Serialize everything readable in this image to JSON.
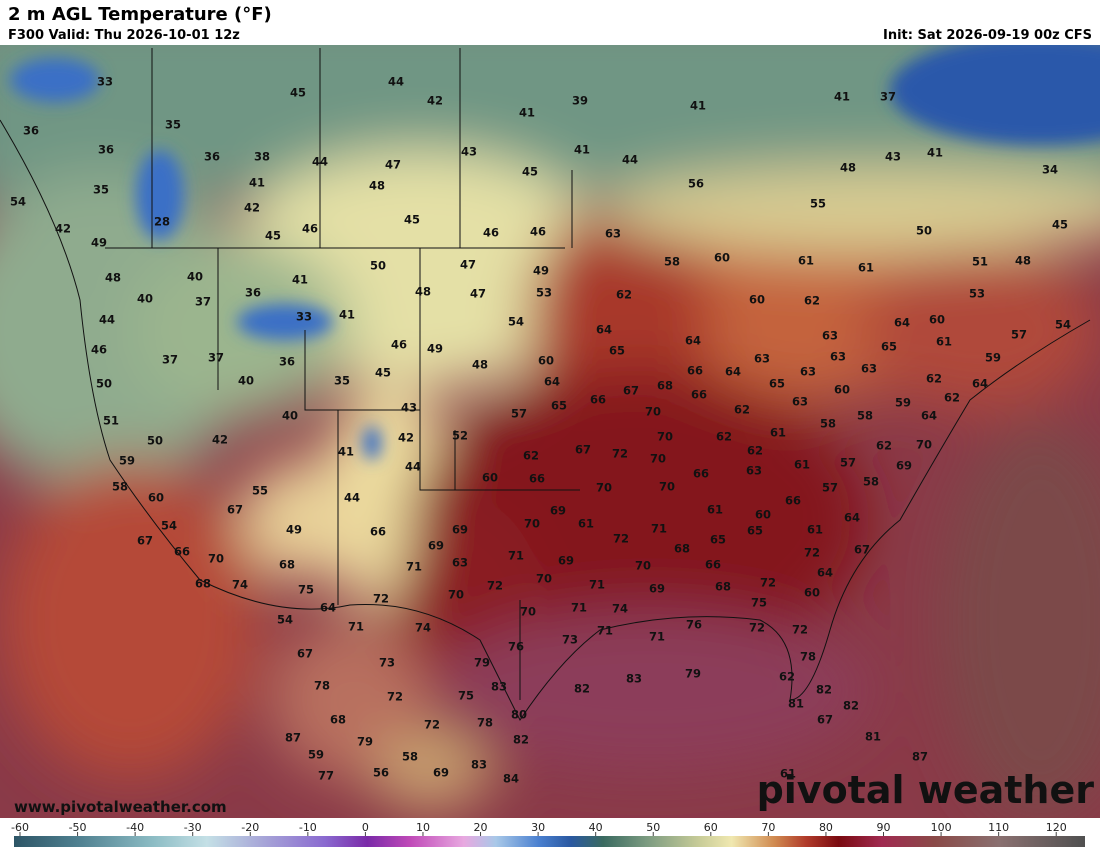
{
  "title": "2 m AGL Temperature (°F)",
  "valid": "F300 Valid: Thu 2026-10-01 12z",
  "init": "Init: Sat 2026-09-19 00z CFS",
  "website": "www.pivotalweather.com",
  "logo": "pivotal weather",
  "stations": [
    33,
    44,
    42,
    39,
    45,
    41,
    41,
    37,
    41,
    36,
    35,
    36,
    36,
    38,
    44,
    47,
    43,
    41,
    44,
    43,
    41,
    45,
    48,
    34,
    35,
    41,
    48,
    56,
    54,
    42,
    45,
    28,
    55,
    50,
    45,
    42,
    45,
    46,
    46,
    46,
    63,
    49,
    50,
    47,
    49,
    58,
    60,
    61,
    61,
    51,
    48,
    48,
    40,
    41,
    48,
    47,
    53,
    62,
    60,
    62,
    53,
    40,
    36,
    37,
    33,
    41,
    54,
    64,
    64,
    60,
    57,
    54,
    44,
    46,
    49,
    65,
    64,
    63,
    65,
    61,
    59,
    46,
    37,
    37,
    36,
    60,
    48,
    63,
    63,
    63,
    66,
    64,
    45,
    35,
    64,
    63,
    65,
    62,
    64,
    50,
    40,
    67,
    68,
    66,
    60,
    43,
    65,
    66,
    59,
    62,
    63,
    40,
    57,
    70,
    62,
    58,
    64,
    51,
    58,
    50,
    42,
    42,
    52,
    62,
    61,
    62,
    70,
    70,
    41,
    67,
    72,
    62,
    62,
    59,
    44,
    60,
    66,
    70,
    57,
    69,
    61,
    63,
    66,
    58,
    55,
    44,
    70,
    70,
    57,
    58,
    60,
    66,
    67,
    61,
    60,
    64,
    54,
    49,
    66,
    69,
    70,
    69,
    61,
    61,
    67,
    66,
    69,
    72,
    71,
    68,
    65,
    65,
    72,
    67,
    70,
    68,
    63,
    71,
    71,
    69,
    66,
    68,
    74,
    72,
    70,
    71,
    70,
    69,
    68,
    72,
    64,
    75,
    70,
    75,
    60,
    64,
    72,
    70,
    71,
    74,
    71,
    73,
    71,
    76,
    72,
    72,
    54,
    71,
    74,
    76,
    67,
    73,
    79,
    78,
    62,
    72,
    75,
    83,
    82,
    83,
    79,
    82,
    78,
    81,
    82,
    68,
    72,
    78,
    80,
    67,
    79,
    82,
    81,
    87,
    59,
    58,
    83,
    87,
    77,
    56,
    69,
    84,
    61
  ],
  "colorbar": {
    "ticks": [
      -60,
      -50,
      -40,
      -30,
      -20,
      -10,
      0,
      10,
      20,
      30,
      40,
      50,
      60,
      70,
      80,
      90,
      100,
      110,
      120
    ],
    "lim": [
      -60,
      125
    ]
  }
}
